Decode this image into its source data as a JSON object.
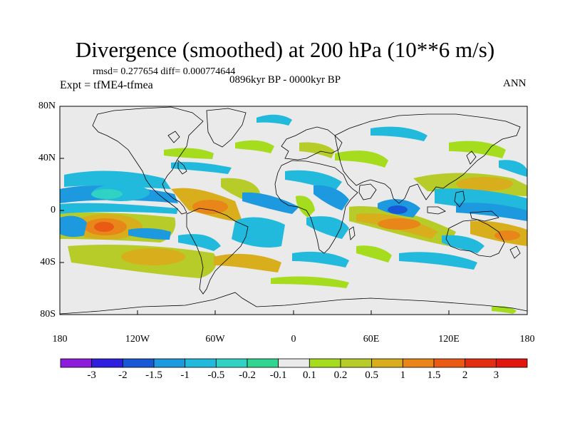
{
  "title": "Divergence (smoothed) at 200 hPa (10**6 m/s)",
  "stats": "rmsd= 0.277654  diff= 0.000774644",
  "experiment": "Expt = tfME4-tfmea",
  "period": "0896kyr BP - 0000kyr BP",
  "season": "ANN",
  "lat_labels": [
    "80N",
    "40N",
    "0",
    "40S",
    "80S"
  ],
  "lon_labels": [
    "180",
    "120W",
    "60W",
    "0",
    "60E",
    "120E",
    "180"
  ],
  "colorbar": {
    "labels": [
      "-3",
      "-2",
      "-1.5",
      "-1",
      "-0.5",
      "-0.2",
      "-0.1",
      "0.1",
      "0.2",
      "0.5",
      "1",
      "1.5",
      "2",
      "3"
    ],
    "colors": [
      "#8c1bdc",
      "#2d1ee0",
      "#1758d6",
      "#1d99e0",
      "#21b9dc",
      "#30d2c4",
      "#30d690",
      "#eaeaea",
      "#a5dc1d",
      "#b7cc28",
      "#d8ae1c",
      "#e8861a",
      "#ea5a14",
      "#e22f12",
      "#e0160f"
    ]
  },
  "colors": {
    "background": "#eaeaea",
    "coast": "#000000"
  }
}
